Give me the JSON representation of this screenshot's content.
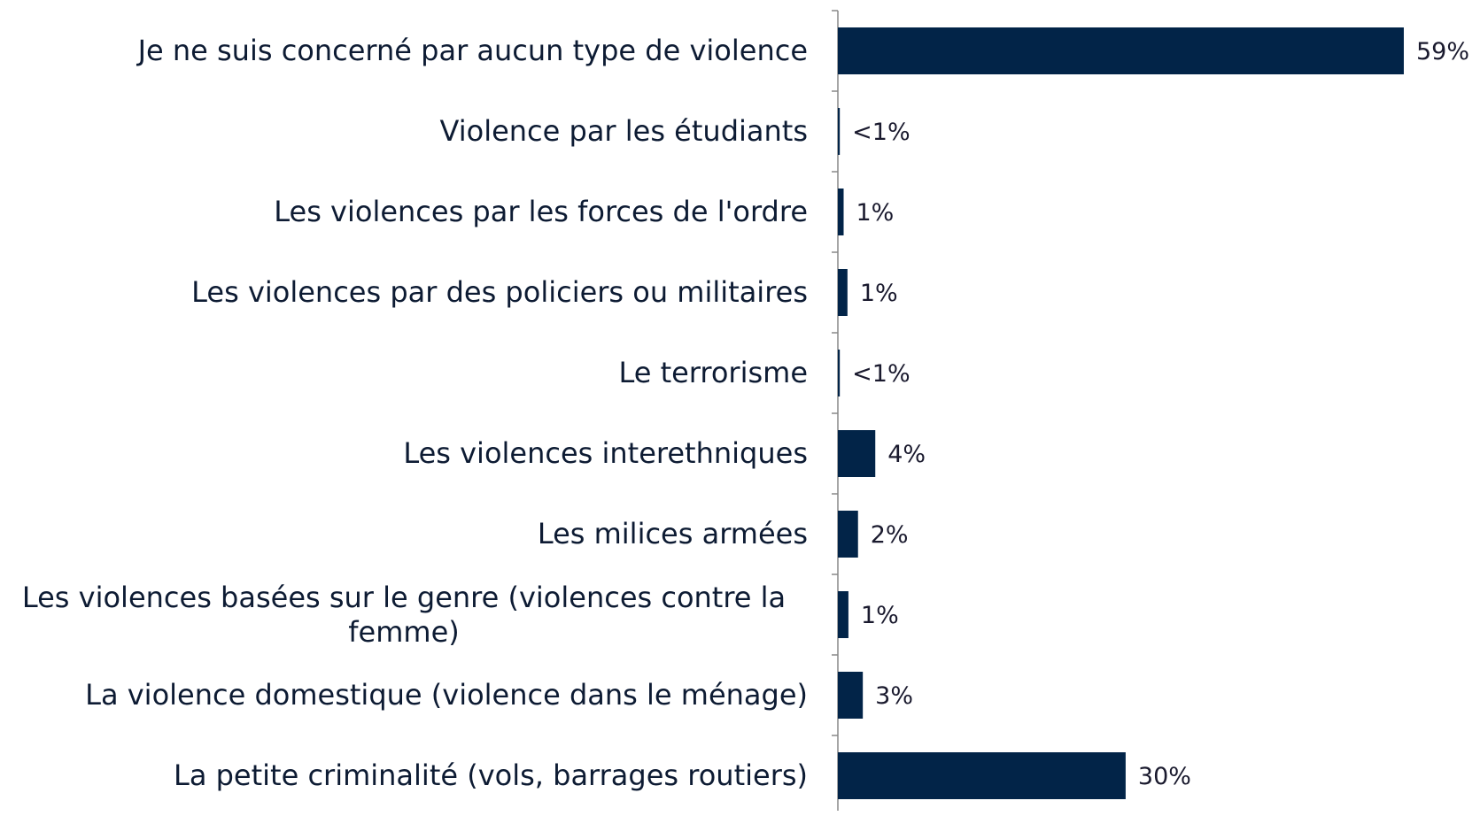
{
  "chart_data": {
    "type": "hbar",
    "categories": [
      "Je ne suis concerné par aucun type de violence",
      "Violence par les étudiants",
      "Les violences par les forces de l'ordre",
      "Les violences par des policiers ou militaires",
      "Le terrorisme",
      "Les violences interethniques",
      "Les milices armées",
      "Les violences basées sur le genre (violences contre la femme)",
      "La violence domestique (violence dans le ménage)",
      "La petite criminalité (vols, barrages routiers)"
    ],
    "values": [
      59,
      0.2,
      0.6,
      1,
      0.2,
      3.9,
      2.1,
      1.1,
      2.6,
      30
    ],
    "value_labels": [
      "59%",
      "<1%",
      "1%",
      "1%",
      "<1%",
      "4%",
      "2%",
      "1%",
      "3%",
      "30%"
    ],
    "color": "#022448"
  }
}
